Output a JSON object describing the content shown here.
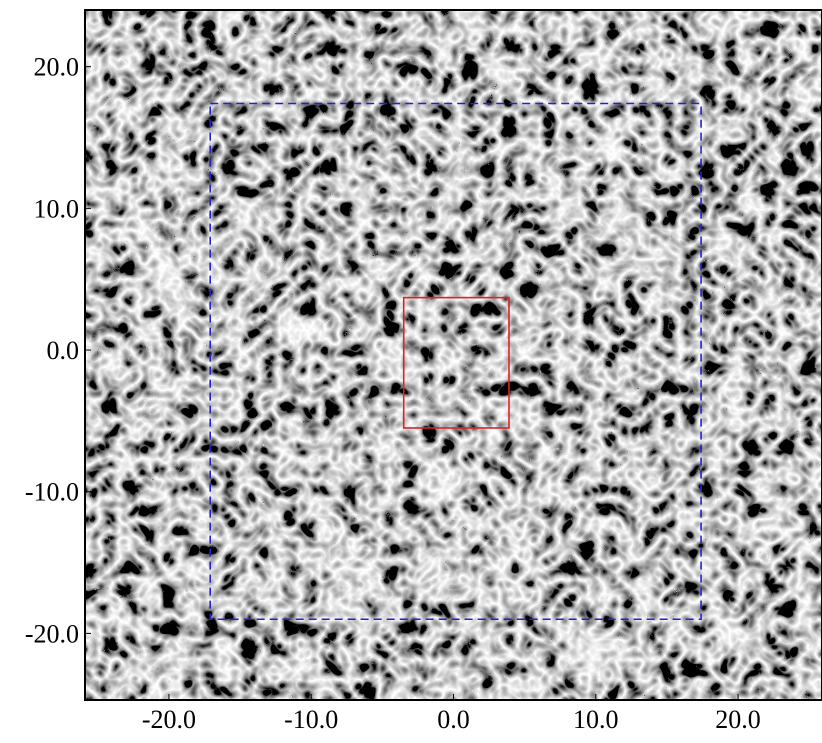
{
  "chart_data": {
    "type": "image",
    "xlim": [
      -25.9,
      25.9
    ],
    "ylim": [
      -24.7,
      24.0
    ],
    "xticks": [
      {
        "value": -20,
        "label": "-20.0"
      },
      {
        "value": -10,
        "label": "-10.0"
      },
      {
        "value": 0,
        "label": "0.0"
      },
      {
        "value": 10,
        "label": "10.0"
      },
      {
        "value": 20,
        "label": "20.0"
      }
    ],
    "yticks": [
      {
        "value": -20,
        "label": "-20.0"
      },
      {
        "value": -10,
        "label": "-10.0"
      },
      {
        "value": 0,
        "label": "0.0"
      },
      {
        "value": 10,
        "label": "10.0"
      },
      {
        "value": 20,
        "label": "20.0"
      }
    ],
    "regions": [
      {
        "color": "#2222cc",
        "style": "dashed",
        "x": [
          -17.1,
          17.4
        ],
        "y": [
          -19.0,
          17.4
        ]
      },
      {
        "color": "#dd2222",
        "style": "solid",
        "x": [
          -3.5,
          3.9
        ],
        "y": [
          -5.5,
          3.7
        ]
      }
    ]
  }
}
